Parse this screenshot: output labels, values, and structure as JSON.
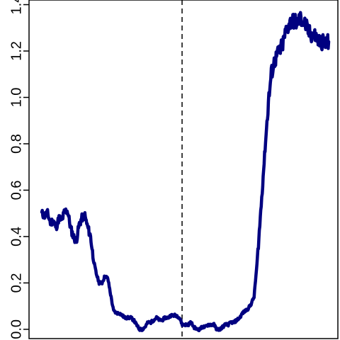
{
  "chart_data": {
    "type": "line",
    "title": "",
    "xlabel": "",
    "ylabel": "",
    "x_ticks_shown": false,
    "xlim": [
      0,
      100
    ],
    "ylim": [
      -0.04,
      1.42
    ],
    "y_ticks": [
      "0.0",
      "0.2",
      "0.4",
      "0.6",
      "0.8",
      "1.0",
      "1.2",
      "1.4"
    ],
    "y_tick_values": [
      0.0,
      0.2,
      0.4,
      0.6,
      0.8,
      1.0,
      1.2,
      1.4
    ],
    "vline": {
      "x": 48.9,
      "style": "dashed",
      "color": "#000000"
    },
    "series": [
      {
        "color": "#000080",
        "x": [
          0,
          1,
          2,
          3,
          4,
          5,
          6,
          7,
          8,
          9,
          10,
          11,
          12,
          13,
          14,
          15,
          16,
          17,
          18,
          19,
          20,
          21,
          22,
          23,
          24,
          25,
          26,
          27,
          28,
          29,
          30,
          31,
          32,
          33,
          34,
          35,
          36,
          37,
          38,
          39,
          40,
          41,
          42,
          43,
          44,
          45,
          46,
          47,
          48,
          49,
          50,
          51,
          52,
          53,
          54,
          55,
          56,
          57,
          58,
          59,
          60,
          61,
          62,
          63,
          64,
          65,
          66,
          67,
          68,
          69,
          70,
          71,
          72,
          73,
          74,
          75,
          76,
          77,
          78,
          79,
          80,
          81,
          82,
          83,
          84,
          85,
          86,
          87,
          88,
          89,
          90,
          91,
          92,
          93,
          94,
          95,
          96,
          97,
          98,
          99,
          100
        ],
        "y": [
          0.5,
          0.49,
          0.5,
          0.46,
          0.47,
          0.44,
          0.48,
          0.47,
          0.51,
          0.51,
          0.44,
          0.4,
          0.38,
          0.45,
          0.48,
          0.49,
          0.44,
          0.4,
          0.3,
          0.24,
          0.2,
          0.2,
          0.23,
          0.22,
          0.15,
          0.08,
          0.07,
          0.07,
          0.06,
          0.05,
          0.05,
          0.05,
          0.04,
          0.02,
          0.0,
          0.0,
          0.01,
          0.03,
          0.03,
          0.04,
          0.05,
          0.04,
          0.04,
          0.05,
          0.05,
          0.06,
          0.06,
          0.06,
          0.05,
          0.02,
          0.02,
          0.02,
          0.03,
          0.01,
          0.0,
          0.0,
          0.01,
          0.01,
          0.02,
          0.02,
          0.02,
          0.0,
          0.0,
          0.01,
          0.02,
          0.02,
          0.03,
          0.03,
          0.04,
          0.05,
          0.07,
          0.08,
          0.09,
          0.11,
          0.14,
          0.28,
          0.45,
          0.63,
          0.81,
          0.98,
          1.1,
          1.15,
          1.18,
          1.2,
          1.23,
          1.28,
          1.31,
          1.33,
          1.33,
          1.32,
          1.34,
          1.33,
          1.31,
          1.28,
          1.27,
          1.27,
          1.25,
          1.24,
          1.24,
          1.23,
          1.24
        ]
      }
    ]
  }
}
